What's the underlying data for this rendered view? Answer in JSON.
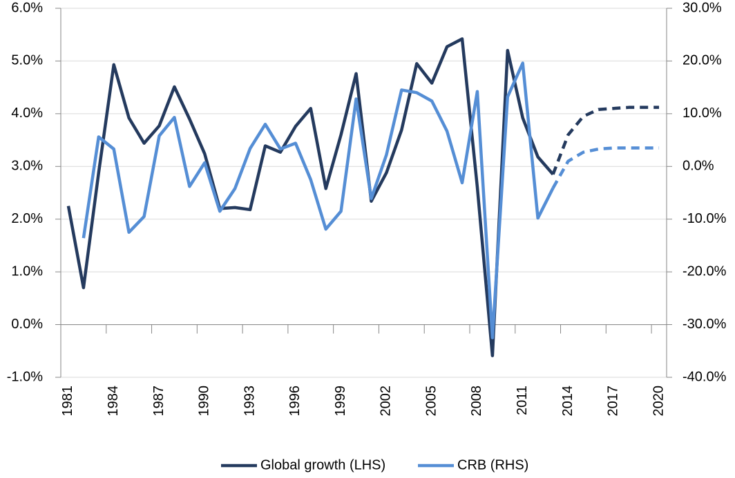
{
  "chart_data": {
    "type": "line",
    "categories": [
      "1981",
      null,
      null,
      "1984",
      null,
      null,
      "1987",
      null,
      null,
      "1990",
      null,
      null,
      "1993",
      null,
      null,
      "1996",
      null,
      null,
      "1999",
      null,
      null,
      "2002",
      null,
      null,
      "2005",
      null,
      null,
      "2008",
      null,
      null,
      "2011",
      null,
      null,
      "2014",
      null,
      null,
      "2017",
      null,
      null,
      "2020"
    ],
    "series": [
      {
        "name": "Global growth (LHS)",
        "color": "#243a5e",
        "axis": "y",
        "dash_from": 32,
        "values": [
          2.25,
          0.7,
          2.88,
          4.93,
          3.92,
          3.44,
          3.77,
          4.51,
          3.9,
          3.24,
          2.2,
          2.22,
          2.18,
          3.39,
          3.27,
          3.76,
          4.1,
          2.58,
          3.6,
          4.76,
          2.34,
          2.88,
          3.69,
          4.95,
          4.58,
          5.27,
          5.42,
          2.61,
          -0.59,
          5.2,
          3.92,
          3.18,
          2.85,
          3.6,
          3.95,
          4.08,
          4.1,
          4.12,
          4.12,
          4.12
        ]
      },
      {
        "name": "CRB (RHS)",
        "color": "#558ed5",
        "axis": "y2",
        "dash_from": 32,
        "values": [
          null,
          -13.6,
          5.6,
          3.3,
          -12.5,
          -9.5,
          5.8,
          9.3,
          -3.8,
          0.7,
          -8.5,
          -4.2,
          3.4,
          8.0,
          3.3,
          4.4,
          -2.5,
          -11.9,
          -8.5,
          12.8,
          -6.1,
          2.2,
          14.5,
          14.0,
          12.4,
          6.7,
          -3.1,
          14.2,
          -32.5,
          13.2,
          19.6,
          -9.8,
          -4.1,
          1.0,
          2.7,
          3.3,
          3.5,
          3.5,
          3.5,
          3.5
        ]
      }
    ],
    "ylim": [
      -1,
      6
    ],
    "yticks": [
      {
        "value": -1,
        "label": "-1.0%"
      },
      {
        "value": 0,
        "label": "0.0%"
      },
      {
        "value": 1,
        "label": "1.0%"
      },
      {
        "value": 2,
        "label": "2.0%"
      },
      {
        "value": 3,
        "label": "3.0%"
      },
      {
        "value": 4,
        "label": "4.0%"
      },
      {
        "value": 5,
        "label": "5.0%"
      },
      {
        "value": 6,
        "label": "6.0%"
      }
    ],
    "y2lim": [
      -40,
      30
    ],
    "y2ticks": [
      {
        "value": -40,
        "label": "-40.0%"
      },
      {
        "value": -30,
        "label": "-30.0%"
      },
      {
        "value": -20,
        "label": "-20.0%"
      },
      {
        "value": -10,
        "label": "-10.0%"
      },
      {
        "value": 0,
        "label": "0.0%"
      },
      {
        "value": 10,
        "label": "10.0%"
      },
      {
        "value": 20,
        "label": "20.0%"
      },
      {
        "value": 30,
        "label": "30.0%"
      }
    ],
    "grid": true,
    "legend": "bottom"
  }
}
